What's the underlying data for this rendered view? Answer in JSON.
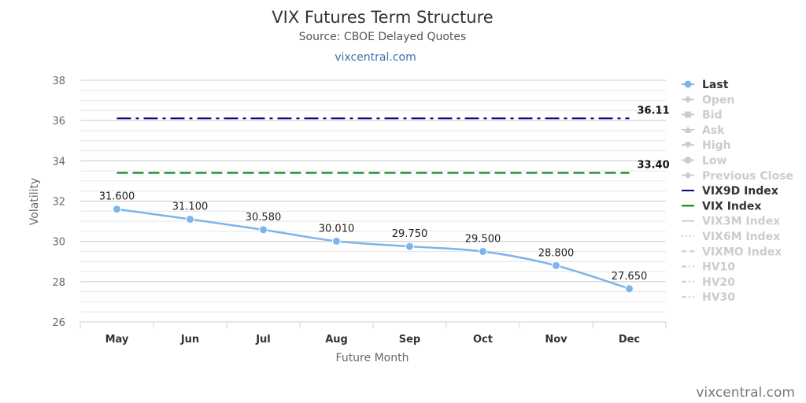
{
  "header": {
    "title": "VIX Futures Term Structure",
    "subtitle": "Source: CBOE Delayed Quotes",
    "link": "vixcentral.com"
  },
  "credit": "vixcentral.com",
  "chart_data": {
    "type": "line",
    "xlabel": "Future Month",
    "ylabel": "Volatility",
    "ylim": [
      26,
      38
    ],
    "y_ticks": [
      26,
      28,
      30,
      32,
      34,
      36,
      38
    ],
    "grid": true,
    "categories": [
      "May",
      "Jun",
      "Jul",
      "Aug",
      "Sep",
      "Oct",
      "Nov",
      "Dec"
    ],
    "series": [
      {
        "name": "Last",
        "color": "#7cb5ec",
        "values": [
          31.6,
          31.1,
          30.58,
          30.01,
          29.75,
          29.5,
          28.8,
          27.65
        ],
        "labels": [
          "31.600",
          "31.100",
          "30.580",
          "30.010",
          "29.750",
          "29.500",
          "28.800",
          "27.650"
        ]
      }
    ],
    "reference_lines": [
      {
        "name": "VIX9D Index",
        "value": 36.11,
        "label": "36.11",
        "color": "#000080",
        "style": "dash-dot"
      },
      {
        "name": "VIX Index",
        "value": 33.4,
        "label": "33.40",
        "color": "#008000",
        "style": "dash"
      }
    ],
    "legend": {
      "placement": "right",
      "items": [
        {
          "name": "Last",
          "active": true,
          "color": "#7cb5ec",
          "marker": "circle"
        },
        {
          "name": "Open",
          "active": false,
          "marker": "diamond"
        },
        {
          "name": "Bid",
          "active": false,
          "marker": "square"
        },
        {
          "name": "Ask",
          "active": false,
          "marker": "triangle"
        },
        {
          "name": "High",
          "active": false,
          "marker": "triangle-down"
        },
        {
          "name": "Low",
          "active": false,
          "marker": "circle"
        },
        {
          "name": "Previous Close",
          "active": false,
          "marker": "diamond"
        },
        {
          "name": "VIX9D Index",
          "active": true,
          "color": "#000080",
          "marker": "line"
        },
        {
          "name": "VIX Index",
          "active": true,
          "color": "#008000",
          "marker": "line"
        },
        {
          "name": "VIX3M Index",
          "active": false,
          "marker": "line"
        },
        {
          "name": "VIX6M Index",
          "active": false,
          "marker": "dotted"
        },
        {
          "name": "VIXMO Index",
          "active": false,
          "marker": "dash"
        },
        {
          "name": "HV10",
          "active": false,
          "marker": "dash-dot"
        },
        {
          "name": "HV20",
          "active": false,
          "marker": "dash-dot"
        },
        {
          "name": "HV30",
          "active": false,
          "marker": "dash-dot"
        }
      ]
    }
  }
}
